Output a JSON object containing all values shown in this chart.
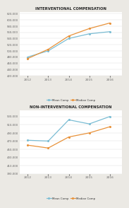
{
  "years": [
    2012,
    2013,
    2014,
    2015,
    2016
  ],
  "interventional": {
    "mean": [
      480000,
      500000,
      540000,
      555000,
      562000
    ],
    "median": [
      475000,
      505000,
      548000,
      572000,
      590000
    ]
  },
  "non_interventional": {
    "mean": [
      472000,
      470000,
      522000,
      512000,
      530000
    ],
    "median": [
      460000,
      453000,
      480000,
      490000,
      505000
    ]
  },
  "title1": "INTERVENTIONAL COMPENSATION",
  "title2": "NON-INTERVENTIONAL COMPENSATION",
  "mean_color": "#7bbdd4",
  "median_color": "#e8923a",
  "background_panel": "#ebe9e4",
  "background_plot": "#ffffff",
  "ylim1": [
    420000,
    625000
  ],
  "yticks1": [
    420000,
    440000,
    460000,
    480000,
    500000,
    520000,
    540000,
    560000,
    580000,
    600000,
    620000
  ],
  "ylim2": [
    390000,
    545000
  ],
  "yticks2": [
    390000,
    410000,
    430000,
    450000,
    470000,
    490000,
    510000,
    530000
  ],
  "legend_labels": [
    "Mean Comp",
    "Median Comp"
  ]
}
